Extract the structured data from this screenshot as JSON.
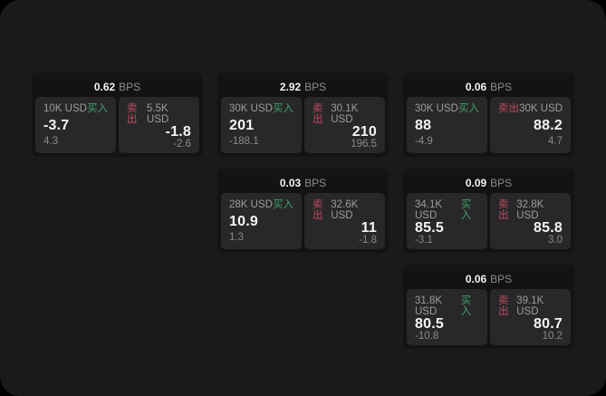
{
  "labels": {
    "buy": "买入",
    "sell": "卖出",
    "bps_unit": "BPS"
  },
  "colors": {
    "outer_bg": "#000000",
    "panel_bg": "#1a1a1b",
    "card_bg": "#131314",
    "tile_bg": "#28282a",
    "buy": "#3fa169",
    "sell": "#c24a5e",
    "primary_text": "#f5f5f5",
    "secondary_text": "#9c9c9c",
    "muted_text": "#8a8a8a"
  },
  "cards": [
    {
      "col": 1,
      "row": 1,
      "bps": "0.62",
      "buy": {
        "amount": "10K USD",
        "value": "-3.7",
        "sub": "4.3"
      },
      "sell": {
        "amount": "5.5K USD",
        "value": "-1.8",
        "sub": "-2.6"
      }
    },
    {
      "col": 2,
      "row": 1,
      "bps": "2.92",
      "buy": {
        "amount": "30K USD",
        "value": "201",
        "sub": "-188.1"
      },
      "sell": {
        "amount": "30.1K USD",
        "value": "210",
        "sub": "196.5"
      }
    },
    {
      "col": 3,
      "row": 1,
      "bps": "0.06",
      "buy": {
        "amount": "30K USD",
        "value": "88",
        "sub": "-4.9"
      },
      "sell": {
        "amount": "30K USD",
        "value": "88.2",
        "sub": "4.7"
      }
    },
    {
      "col": 2,
      "row": 2,
      "bps": "0.03",
      "buy": {
        "amount": "28K USD",
        "value": "10.9",
        "sub": "1.3"
      },
      "sell": {
        "amount": "32.6K USD",
        "value": "11",
        "sub": "-1.8"
      }
    },
    {
      "col": 3,
      "row": 2,
      "bps": "0.09",
      "buy": {
        "amount": "34.1K USD",
        "value": "85.5",
        "sub": "-3.1"
      },
      "sell": {
        "amount": "32.8K USD",
        "value": "85.8",
        "sub": "3.0"
      }
    },
    {
      "col": 3,
      "row": 3,
      "bps": "0.06",
      "buy": {
        "amount": "31.8K USD",
        "value": "80.5",
        "sub": "-10.8"
      },
      "sell": {
        "amount": "39.1K USD",
        "value": "80.7",
        "sub": "10.2"
      }
    }
  ]
}
